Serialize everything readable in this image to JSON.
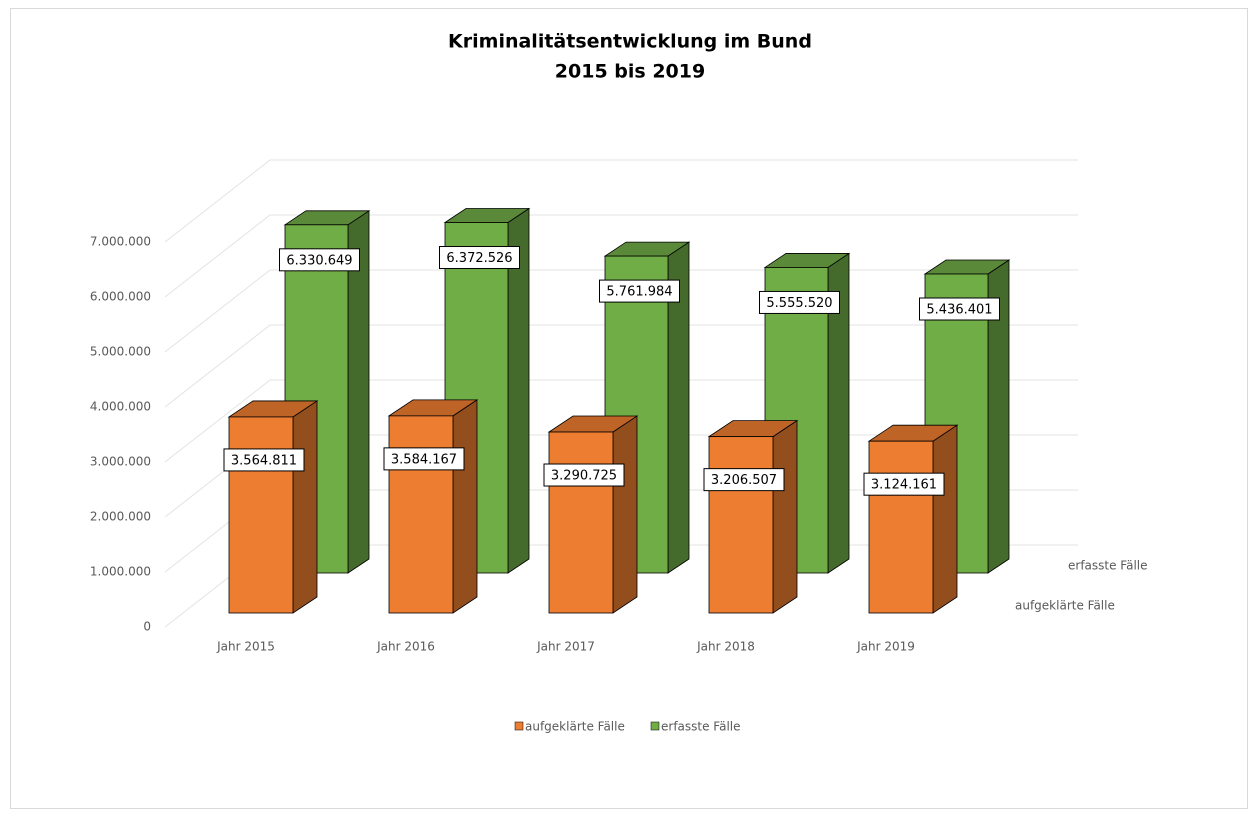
{
  "chart_data": {
    "type": "bar3d",
    "title": "Kriminalitätsentwicklung im Bund",
    "subtitle": "2015 bis 2019",
    "categories": [
      "Jahr 2015",
      "Jahr 2016",
      "Jahr 2017",
      "Jahr 2018",
      "Jahr 2019"
    ],
    "series": [
      {
        "name": "aufgeklärte Fälle",
        "color": "#ed7d31",
        "values": [
          3564811,
          3584167,
          3290725,
          3206507,
          3124161
        ],
        "value_labels": [
          "3.564.811",
          "3.584.167",
          "3.290.725",
          "3.206.507",
          "3.124.161"
        ]
      },
      {
        "name": "erfasste Fälle",
        "color": "#70ad47",
        "values": [
          6330649,
          6372526,
          5761984,
          5555520,
          5436401
        ],
        "value_labels": [
          "6.330.649",
          "6.372.526",
          "5.761.984",
          "5.555.520",
          "5.436.401"
        ]
      }
    ],
    "ylim": [
      0,
      7000000
    ],
    "yticks": [
      0,
      {
        "value": 1000000,
        "label": "1.000.000"
      },
      {
        "value": 2000000,
        "label": "2.000.000"
      },
      {
        "value": 3000000,
        "label": "3.000.000"
      },
      {
        "value": 4000000,
        "label": "4.000.000"
      },
      {
        "value": 5000000,
        "label": "5.000.000"
      },
      {
        "value": 6000000,
        "label": "6.000.000"
      },
      {
        "value": 7000000,
        "label": "7.000.000"
      }
    ],
    "grid": true,
    "legend": "bottom"
  }
}
